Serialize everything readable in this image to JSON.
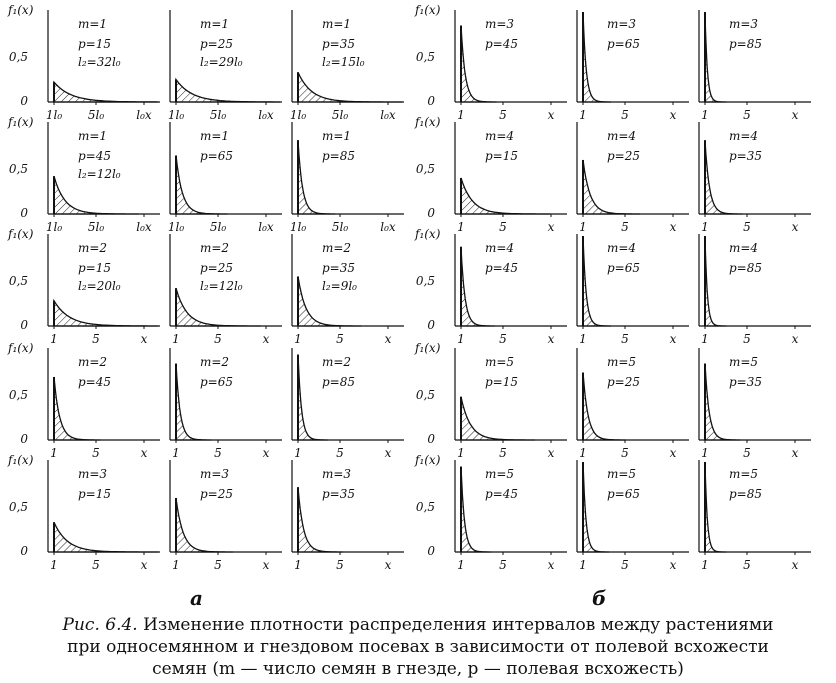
{
  "figure": {
    "y_axis_label": "f₁(x)",
    "y_ticks": [
      "0",
      "0,5"
    ],
    "group_labels": [
      "а",
      "б"
    ],
    "caption": {
      "label": "Рис. 6.4.",
      "line1": "Изменение плотности распределения интервалов между растениями",
      "line2": "при односемянном и гнездовом посевах в зависимости от полевой всхожести",
      "line3": "семян (m — число семян в гнезде, p — полевая всхожесть)"
    }
  },
  "chart_data": [
    {
      "group": "а",
      "type": "area",
      "m": 1,
      "p": 15,
      "l2": "l₂=32l₀",
      "y_peak": 0.22,
      "x_ticks": [
        "1l₀",
        "5l₀",
        "l₀x"
      ]
    },
    {
      "group": "а",
      "type": "area",
      "m": 1,
      "p": 25,
      "l2": "l₂=29l₀",
      "y_peak": 0.25,
      "x_ticks": [
        "1l₀",
        "5l₀",
        "l₀x"
      ]
    },
    {
      "group": "а",
      "type": "area",
      "m": 1,
      "p": 35,
      "l2": "l₂=15l₀",
      "y_peak": 0.33,
      "x_ticks": [
        "1l₀",
        "5l₀",
        "l₀x"
      ]
    },
    {
      "group": "б",
      "type": "area",
      "m": 3,
      "p": 45,
      "y_peak": 0.85,
      "x_ticks": [
        "1",
        "5",
        "x"
      ]
    },
    {
      "group": "б",
      "type": "area",
      "m": 3,
      "p": 65,
      "y_peak": 1.0,
      "x_ticks": [
        "1",
        "5",
        "x"
      ]
    },
    {
      "group": "б",
      "type": "area",
      "m": 3,
      "p": 85,
      "y_peak": 1.2,
      "x_ticks": [
        "1",
        "5",
        "x"
      ]
    },
    {
      "group": "а",
      "type": "area",
      "m": 1,
      "p": 45,
      "l2": "l₂=12l₀",
      "y_peak": 0.42,
      "x_ticks": [
        "1l₀",
        "5l₀",
        "l₀x"
      ]
    },
    {
      "group": "а",
      "type": "area",
      "m": 1,
      "p": 65,
      "y_peak": 0.65,
      "x_ticks": [
        "1l₀",
        "5l₀",
        "l₀x"
      ]
    },
    {
      "group": "а",
      "type": "area",
      "m": 1,
      "p": 85,
      "y_peak": 0.82,
      "x_ticks": [
        "1l₀",
        "5l₀",
        "l₀x"
      ]
    },
    {
      "group": "б",
      "type": "area",
      "m": 4,
      "p": 15,
      "y_peak": 0.4,
      "x_ticks": [
        "1",
        "5",
        "x"
      ]
    },
    {
      "group": "б",
      "type": "area",
      "m": 4,
      "p": 25,
      "y_peak": 0.6,
      "x_ticks": [
        "1",
        "5",
        "x"
      ]
    },
    {
      "group": "б",
      "type": "area",
      "m": 4,
      "p": 35,
      "y_peak": 0.82,
      "x_ticks": [
        "1",
        "5",
        "x"
      ]
    },
    {
      "group": "а",
      "type": "area",
      "m": 2,
      "p": 15,
      "l2": "l₂=20l₀",
      "y_peak": 0.28,
      "x_ticks": [
        "1",
        "5",
        "x"
      ]
    },
    {
      "group": "а",
      "type": "area",
      "m": 2,
      "p": 25,
      "l2": "l₂=12l₀",
      "y_peak": 0.42,
      "x_ticks": [
        "1",
        "5",
        "x"
      ]
    },
    {
      "group": "а",
      "type": "area",
      "m": 2,
      "p": 35,
      "l2": "l₂=9l₀",
      "y_peak": 0.55,
      "x_ticks": [
        "1",
        "5",
        "x"
      ]
    },
    {
      "group": "б",
      "type": "area",
      "m": 4,
      "p": 45,
      "y_peak": 0.88,
      "x_ticks": [
        "1",
        "5",
        "x"
      ]
    },
    {
      "group": "б",
      "type": "area",
      "m": 4,
      "p": 65,
      "y_peak": 1.0,
      "x_ticks": [
        "1",
        "5",
        "x"
      ]
    },
    {
      "group": "б",
      "type": "area",
      "m": 4,
      "p": 85,
      "y_peak": 1.2,
      "x_ticks": [
        "1",
        "5",
        "x"
      ]
    },
    {
      "group": "а",
      "type": "area",
      "m": 2,
      "p": 45,
      "y_peak": 0.7,
      "x_ticks": [
        "1",
        "5",
        "x"
      ]
    },
    {
      "group": "а",
      "type": "area",
      "m": 2,
      "p": 65,
      "y_peak": 0.85,
      "x_ticks": [
        "1",
        "5",
        "x"
      ]
    },
    {
      "group": "а",
      "type": "area",
      "m": 2,
      "p": 85,
      "y_peak": 0.95,
      "x_ticks": [
        "1",
        "5",
        "x"
      ]
    },
    {
      "group": "б",
      "type": "area",
      "m": 5,
      "p": 15,
      "y_peak": 0.48,
      "x_ticks": [
        "1",
        "5",
        "x"
      ]
    },
    {
      "group": "б",
      "type": "area",
      "m": 5,
      "p": 25,
      "y_peak": 0.75,
      "x_ticks": [
        "1",
        "5",
        "x"
      ]
    },
    {
      "group": "б",
      "type": "area",
      "m": 5,
      "p": 35,
      "y_peak": 0.85,
      "x_ticks": [
        "1",
        "5",
        "x"
      ]
    },
    {
      "group": "а",
      "type": "area",
      "m": 3,
      "p": 15,
      "y_peak": 0.33,
      "x_ticks": [
        "1",
        "5",
        "x"
      ]
    },
    {
      "group": "а",
      "type": "area",
      "m": 3,
      "p": 25,
      "y_peak": 0.6,
      "x_ticks": [
        "1",
        "5",
        "x"
      ]
    },
    {
      "group": "а",
      "type": "area",
      "m": 3,
      "p": 35,
      "y_peak": 0.72,
      "x_ticks": [
        "1",
        "5",
        "x"
      ]
    },
    {
      "group": "б",
      "type": "area",
      "m": 5,
      "p": 45,
      "y_peak": 0.95,
      "x_ticks": [
        "1",
        "5",
        "x"
      ]
    },
    {
      "group": "б",
      "type": "area",
      "m": 5,
      "p": 65,
      "y_peak": 1.05,
      "x_ticks": [
        "1",
        "5",
        "x"
      ]
    },
    {
      "group": "б",
      "type": "area",
      "m": 5,
      "p": 85,
      "y_peak": 1.2,
      "x_ticks": [
        "1",
        "5",
        "x"
      ]
    }
  ]
}
